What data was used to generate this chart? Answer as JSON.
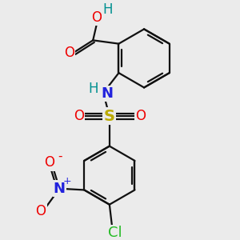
{
  "bg_color": "#ebebeb",
  "bond_color": "#111111",
  "bond_width": 1.6,
  "atom_colors": {
    "O": "#ee0000",
    "H": "#009090",
    "N": "#2222dd",
    "S": "#bbaa00",
    "Cl": "#22bb22",
    "C": "#111111"
  },
  "font_size": 12,
  "figsize": [
    3.0,
    3.0
  ],
  "dpi": 100,
  "xlim": [
    -0.5,
    5.5
  ],
  "ylim": [
    -0.3,
    6.2
  ]
}
